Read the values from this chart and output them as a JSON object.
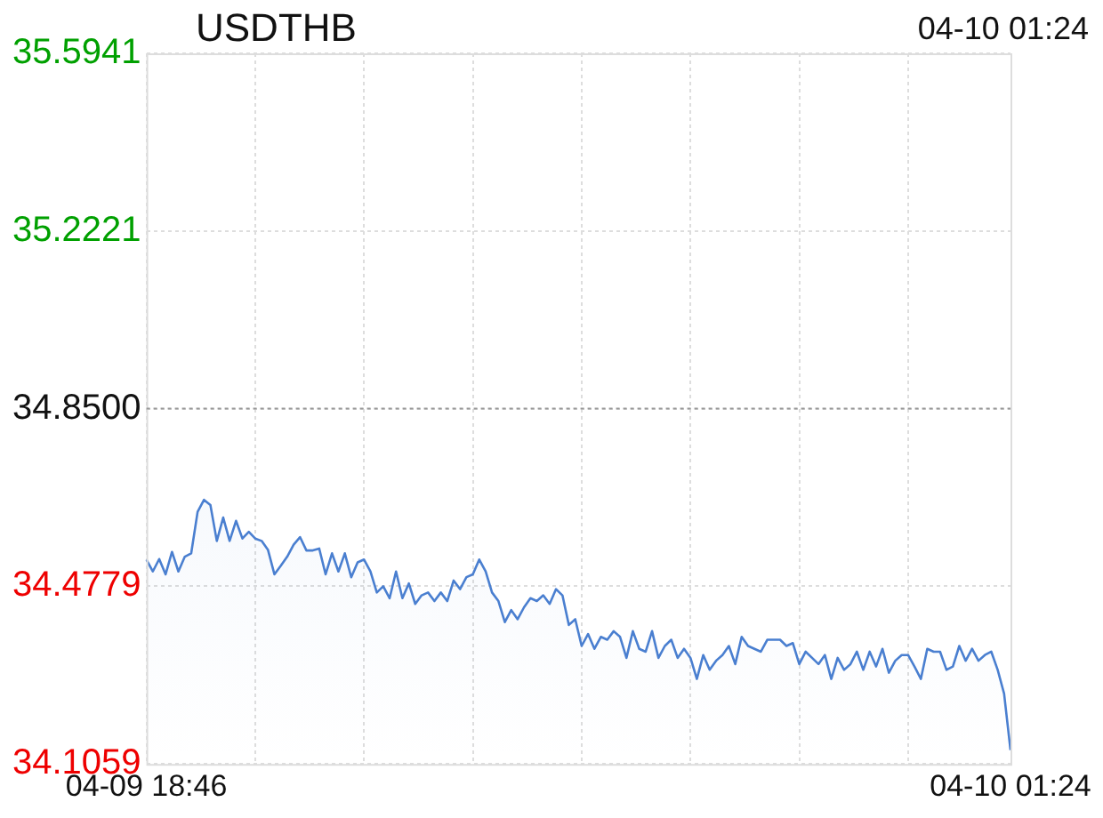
{
  "chart_data": {
    "type": "area",
    "title": "USDTHB",
    "annotations": [
      "04-10 01:24"
    ],
    "categories": [
      "04-09 18:46",
      null,
      null,
      null,
      null,
      null,
      null,
      null,
      null,
      null,
      null,
      null,
      null,
      null,
      null,
      null,
      null,
      null,
      null,
      null,
      null,
      null,
      null,
      null,
      null,
      null,
      null,
      null,
      null,
      null,
      null,
      null,
      null,
      null,
      null,
      null,
      null,
      null,
      null,
      null,
      null,
      null,
      null,
      null,
      null,
      null,
      null,
      null,
      null,
      null,
      null,
      null,
      null,
      null,
      null,
      null,
      null,
      null,
      null,
      null,
      null,
      null,
      null,
      null,
      null,
      null,
      null,
      null,
      null,
      null,
      null,
      null,
      null,
      null,
      null,
      null,
      null,
      null,
      null,
      null,
      null,
      null,
      null,
      null,
      null,
      null,
      null,
      null,
      null,
      null,
      null,
      null,
      null,
      null,
      null,
      null,
      null,
      null,
      null,
      null,
      null,
      null,
      null,
      null,
      null,
      null,
      null,
      null,
      null,
      null,
      null,
      null,
      null,
      null,
      null,
      null,
      null,
      null,
      null,
      null,
      null,
      null,
      null,
      null,
      null,
      null,
      null,
      null,
      null,
      null,
      null,
      null,
      null,
      null,
      null,
      "04-10 01:24"
    ],
    "ylim": [
      34.1059,
      35.5941
    ],
    "yticks": [
      34.1059,
      34.4779,
      {
        "value": 34.85,
        "label": "34.8500"
      },
      35.2221,
      35.5941
    ],
    "grid": true,
    "legend": false,
    "marker": "none",
    "line_style": "solid",
    "ref_lines": [
      {
        "axis": "y",
        "value": 34.85,
        "color": "#999999",
        "line_style": "dotted"
      }
    ],
    "series": [
      {
        "color": "#4a7fd0",
        "values": [
          34.534,
          34.509,
          34.535,
          34.503,
          34.55,
          34.509,
          34.54,
          34.547,
          34.634,
          34.659,
          34.648,
          34.573,
          34.622,
          34.573,
          34.615,
          34.578,
          34.592,
          34.578,
          34.573,
          34.554,
          34.503,
          34.521,
          34.54,
          34.565,
          34.581,
          34.553,
          34.553,
          34.557,
          34.503,
          34.547,
          34.509,
          34.547,
          34.497,
          34.528,
          34.534,
          34.509,
          34.465,
          34.478,
          34.453,
          34.509,
          34.453,
          34.484,
          34.441,
          34.459,
          34.465,
          34.447,
          34.465,
          34.447,
          34.49,
          34.472,
          34.497,
          34.503,
          34.534,
          34.509,
          34.465,
          34.447,
          34.403,
          34.428,
          34.409,
          34.434,
          34.453,
          34.447,
          34.459,
          34.441,
          34.472,
          34.459,
          34.397,
          34.409,
          34.353,
          34.378,
          34.347,
          34.372,
          34.366,
          34.384,
          34.372,
          34.328,
          34.384,
          34.347,
          34.341,
          34.384,
          34.328,
          34.353,
          34.366,
          34.328,
          34.347,
          34.328,
          34.284,
          34.334,
          34.303,
          34.322,
          34.334,
          34.353,
          34.315,
          34.372,
          34.353,
          34.347,
          34.341,
          34.366,
          34.366,
          34.366,
          34.353,
          34.359,
          34.315,
          34.341,
          34.328,
          34.315,
          34.334,
          34.284,
          34.328,
          34.303,
          34.315,
          34.341,
          34.303,
          34.341,
          34.31,
          34.347,
          34.297,
          34.322,
          34.334,
          34.334,
          34.31,
          34.284,
          34.347,
          34.341,
          34.341,
          34.303,
          34.31,
          34.353,
          34.322,
          34.347,
          34.322,
          34.334,
          34.341,
          34.303,
          34.253,
          34.135
        ]
      }
    ]
  }
}
